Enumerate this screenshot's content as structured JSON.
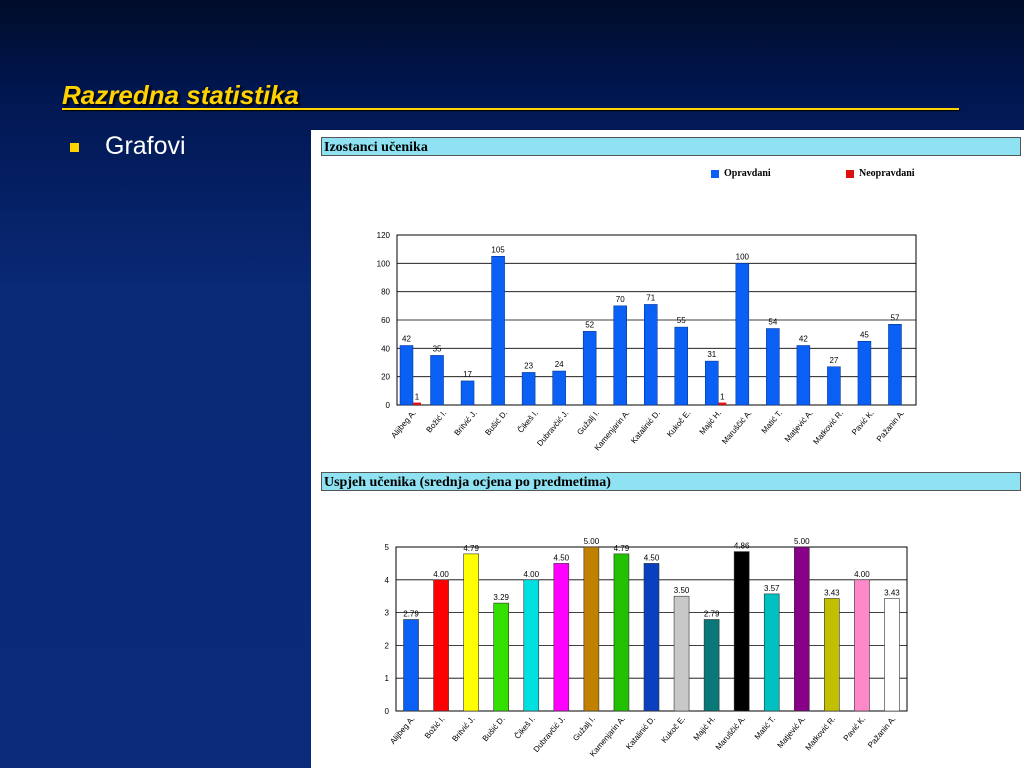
{
  "slide": {
    "title": "Razredna statistika",
    "bullet": "Grafovi"
  },
  "colors": {
    "title": "#ffd200",
    "header_bg": "#8ee2f2"
  },
  "chart_data": [
    {
      "type": "bar",
      "title": "Izostanci učenika",
      "categories": [
        "Alijbeg A.",
        "Božić I.",
        "Britvić J.",
        "Bušić D.",
        "Čikeš I.",
        "Dubravčić J.",
        "Gužalj I.",
        "Kamenjarin A.",
        "Katalinić D.",
        "Kukoč E.",
        "Majić H.",
        "Maruščić A.",
        "Matić T.",
        "Matjević A.",
        "Matković R.",
        "Pavić K.",
        "Pažanin A."
      ],
      "series": [
        {
          "name": "Opravdani",
          "color": "#0a5ff5",
          "values": [
            42,
            35,
            17,
            105,
            23,
            24,
            52,
            70,
            71,
            55,
            31,
            100,
            54,
            42,
            27,
            45,
            57
          ]
        },
        {
          "name": "Neopravdani",
          "color": "#e01010",
          "values": [
            1,
            0,
            0,
            0,
            0,
            0,
            0,
            0,
            0,
            0,
            1,
            0,
            0,
            0,
            0,
            0,
            0
          ]
        }
      ],
      "ylim": [
        0,
        120
      ],
      "yticks": [
        0,
        20,
        40,
        60,
        80,
        100,
        120
      ],
      "legend": "top-right",
      "grid": true
    },
    {
      "type": "bar",
      "title": "Uspjeh učenika (srednja ocjena po predmetima)",
      "categories": [
        "Alijbeg A.",
        "Božić I.",
        "Britvić J.",
        "Bušić D.",
        "Čikeš I.",
        "Dubravčić J.",
        "Gužalj I.",
        "Kamenjarin A.",
        "Katalinić D.",
        "Kukoč E.",
        "Majić H.",
        "Maruščić A.",
        "Matić T.",
        "Matjević A.",
        "Matković R.",
        "Pavić K.",
        "Pažanin A."
      ],
      "values": [
        2.79,
        4.0,
        4.79,
        3.29,
        4.0,
        4.5,
        5.0,
        4.79,
        4.5,
        3.5,
        2.79,
        4.86,
        3.57,
        5.0,
        3.43,
        4.0,
        3.43
      ],
      "labels": [
        "2.79",
        "4.00",
        "4.79",
        "3.29",
        "4.00",
        "4.50",
        "5.00",
        "4.79",
        "4.50",
        "3.50",
        "2.79",
        "4.86",
        "3.57",
        "5.00",
        "3.43",
        "4.00",
        "3.43"
      ],
      "colors": [
        "#0a5ff5",
        "#ff0000",
        "#ffff00",
        "#33e000",
        "#00e0e0",
        "#ff00ff",
        "#c08000",
        "#22c000",
        "#0a3fc0",
        "#c8c8c8",
        "#087878",
        "#000000",
        "#00c0c0",
        "#880088",
        "#c0c000",
        "#ff88c8",
        "#ffffff"
      ],
      "ylim": [
        0,
        5
      ],
      "yticks": [
        0,
        1,
        2,
        3,
        4,
        5
      ],
      "grid": true
    }
  ]
}
